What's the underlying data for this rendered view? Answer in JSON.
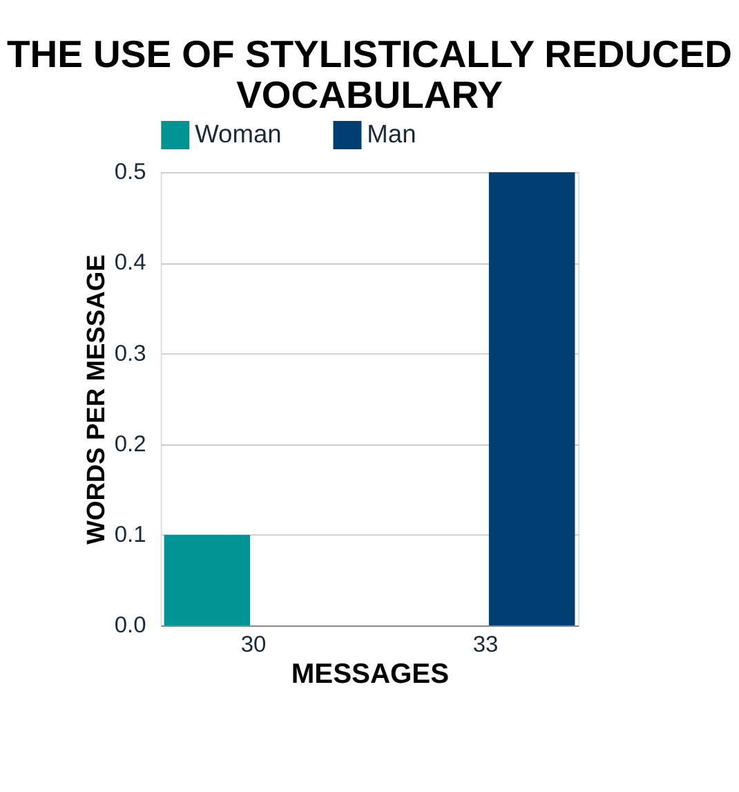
{
  "chart_data": {
    "type": "bar",
    "title": "THE USE OF STYLISTICALLY REDUCED VOCABULARY",
    "xlabel": "MESSAGES",
    "ylabel": "WORDS PER MESSAGE",
    "categories": [
      "30",
      "33"
    ],
    "series": [
      {
        "name": "Woman",
        "color": "#009494",
        "values": [
          0.1,
          0
        ]
      },
      {
        "name": "Man",
        "color": "#013f73",
        "values": [
          0,
          0.5
        ]
      }
    ],
    "ylim": [
      0,
      0.5
    ],
    "yticks": [
      {
        "value": 0,
        "label": "0.0"
      },
      0.1,
      0.2,
      0.3,
      0.4,
      0.5
    ],
    "grid": "y",
    "legend": "top"
  }
}
